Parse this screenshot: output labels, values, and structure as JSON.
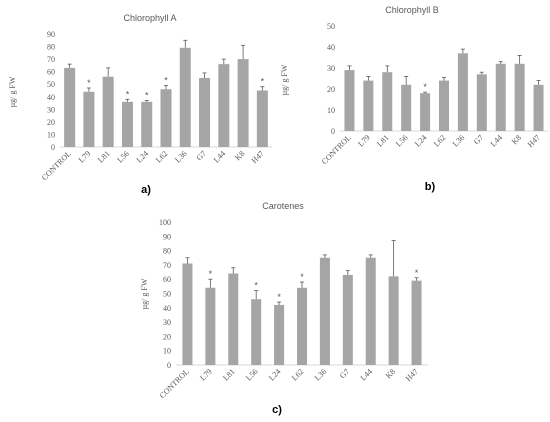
{
  "colors": {
    "bar": "#A5A5A5",
    "axis": "#D9D9D9",
    "text": "#595959",
    "error": "#595959"
  },
  "chart_data": [
    {
      "id": "a",
      "type": "bar",
      "title": "Chlorophyll A",
      "panel_label": "a)",
      "ylabel": "µg/ g FW",
      "ylim": [
        0,
        90
      ],
      "yticks": [
        0,
        10,
        20,
        30,
        40,
        50,
        60,
        70,
        80,
        90
      ],
      "grid": false,
      "categories": [
        "CONTROL",
        "L79",
        "L81",
        "L56",
        "L24",
        "L62",
        "L36",
        "G7",
        "L44",
        "K8",
        "H47"
      ],
      "values": [
        63,
        44,
        56,
        36,
        36,
        46,
        79,
        55,
        66,
        70,
        45
      ],
      "errors": [
        3,
        3,
        7,
        2,
        1,
        3,
        6,
        4,
        4,
        11,
        3
      ],
      "significant": [
        false,
        true,
        false,
        true,
        true,
        true,
        false,
        false,
        false,
        false,
        true
      ],
      "marker": "*"
    },
    {
      "id": "b",
      "type": "bar",
      "title": "Chlorophyll B",
      "panel_label": "b)",
      "ylabel": "µg/ g FW",
      "ylim": [
        0,
        50
      ],
      "yticks": [
        0,
        10,
        20,
        30,
        40,
        50
      ],
      "grid": false,
      "categories": [
        "CONTROL",
        "L79",
        "L81",
        "L56",
        "L24",
        "L62",
        "L36",
        "G7",
        "L44",
        "K8",
        "H47"
      ],
      "values": [
        29,
        24,
        28,
        22,
        18,
        24,
        37,
        27,
        32,
        32,
        22
      ],
      "errors": [
        2,
        2,
        3,
        4,
        0.5,
        1.5,
        2,
        1,
        1,
        4,
        2
      ],
      "significant": [
        false,
        false,
        false,
        false,
        true,
        false,
        false,
        false,
        false,
        false,
        false
      ],
      "marker": "*"
    },
    {
      "id": "c",
      "type": "bar",
      "title": "Carotenes",
      "panel_label": "c)",
      "ylabel": "µg/ g FW",
      "ylim": [
        0,
        100
      ],
      "yticks": [
        0,
        10,
        20,
        30,
        40,
        50,
        60,
        70,
        80,
        90,
        100
      ],
      "grid": false,
      "categories": [
        "CONTROL",
        "L79",
        "L81",
        "L56",
        "L24",
        "L62",
        "L36",
        "G7",
        "L44",
        "K8",
        "H47"
      ],
      "values": [
        71,
        54,
        64,
        46,
        42,
        54,
        75,
        63,
        75,
        62,
        59
      ],
      "errors": [
        4,
        6,
        4,
        6,
        2,
        4,
        2,
        3,
        2,
        25,
        2
      ],
      "significant": [
        false,
        true,
        false,
        true,
        true,
        true,
        false,
        false,
        false,
        false,
        true
      ],
      "marker": "*"
    }
  ]
}
